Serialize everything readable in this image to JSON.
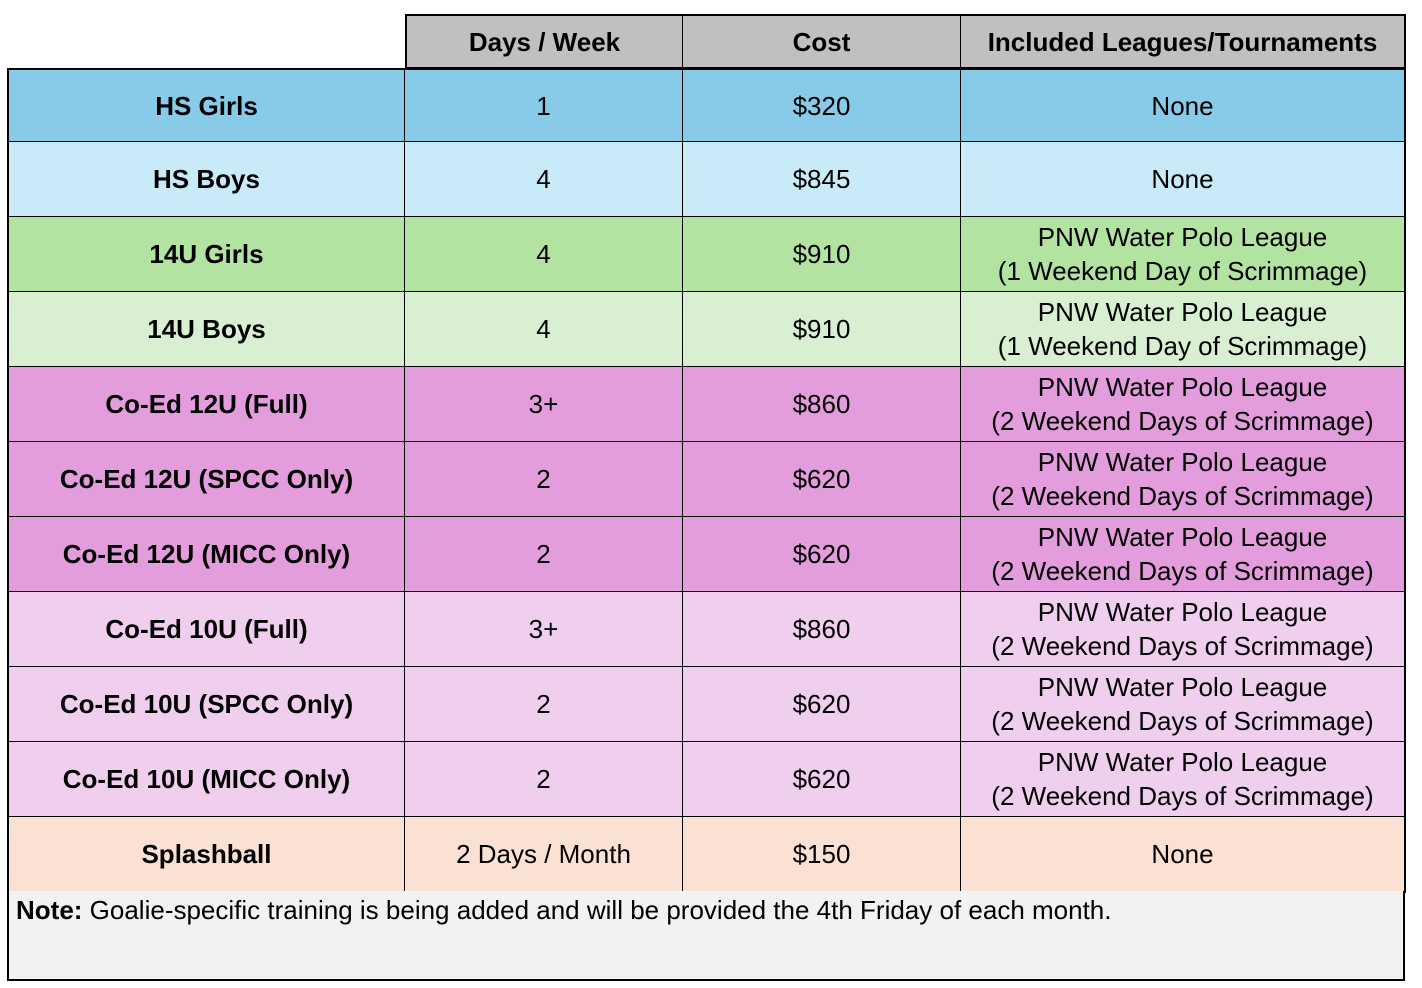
{
  "table": {
    "headers": {
      "blank": "",
      "days": "Days / Week",
      "cost": "Cost",
      "leagues": "Included Leagues/Tournaments"
    },
    "rows": [
      {
        "program": "HS Girls",
        "days": "1",
        "cost": "$320",
        "leagues": [
          "None"
        ],
        "color": "#87cbe9"
      },
      {
        "program": "HS Boys",
        "days": "4",
        "cost": "$845",
        "leagues": [
          "None"
        ],
        "color": "#c9ebf9"
      },
      {
        "program": "14U Girls",
        "days": "4",
        "cost": "$910",
        "leagues": [
          "PNW Water Polo League",
          "(1 Weekend Day of Scrimmage)"
        ],
        "color": "#b3e3a1"
      },
      {
        "program": "14U Boys",
        "days": "4",
        "cost": "$910",
        "leagues": [
          "PNW Water Polo League",
          "(1 Weekend Day of Scrimmage)"
        ],
        "color": "#d8f0d1"
      },
      {
        "program": "Co-Ed 12U (Full)",
        "days": "3+",
        "cost": "$860",
        "leagues": [
          "PNW Water Polo League",
          "(2 Weekend Days of Scrimmage)"
        ],
        "color": "#e39cdc"
      },
      {
        "program": "Co-Ed 12U (SPCC Only)",
        "days": "2",
        "cost": "$620",
        "leagues": [
          "PNW Water Polo League",
          "(2 Weekend Days of Scrimmage)"
        ],
        "color": "#e39cdc"
      },
      {
        "program": "Co-Ed 12U (MICC Only)",
        "days": "2",
        "cost": "$620",
        "leagues": [
          "PNW Water Polo League",
          "(2 Weekend Days of Scrimmage)"
        ],
        "color": "#e39cdc"
      },
      {
        "program": "Co-Ed 10U (Full)",
        "days": "3+",
        "cost": "$860",
        "leagues": [
          "PNW Water Polo League",
          "(2 Weekend Days of Scrimmage)"
        ],
        "color": "#f0ceee"
      },
      {
        "program": "Co-Ed 10U (SPCC Only)",
        "days": "2",
        "cost": "$620",
        "leagues": [
          "PNW Water Polo League",
          "(2 Weekend Days of Scrimmage)"
        ],
        "color": "#f0ceee"
      },
      {
        "program": "Co-Ed 10U (MICC Only)",
        "days": "2",
        "cost": "$620",
        "leagues": [
          "PNW Water Polo League",
          "(2 Weekend Days of Scrimmage)"
        ],
        "color": "#f0ceee"
      },
      {
        "program": "Splashball",
        "days": "2 Days / Month",
        "cost": "$150",
        "leagues": [
          "None"
        ],
        "color": "#fbe1d4"
      }
    ],
    "header_color": "#c0c0c0"
  },
  "note": {
    "label": "Note:",
    "text": " Goalie-specific training is being added and will be provided the 4th Friday of each month."
  }
}
